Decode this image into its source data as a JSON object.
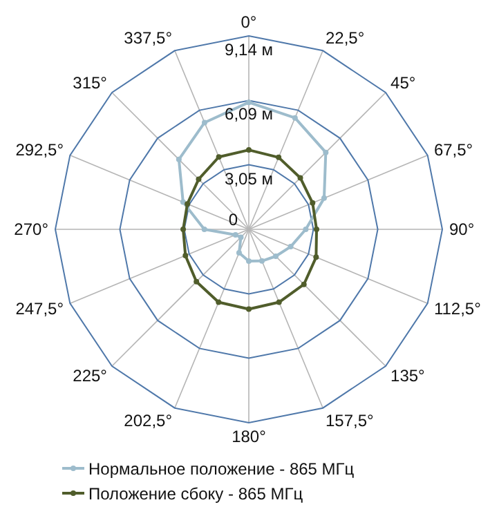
{
  "chart_data": {
    "type": "radar",
    "categories": [
      "0°",
      "22,5°",
      "45°",
      "67,5°",
      "90°",
      "112,5°",
      "135°",
      "157,5°",
      "180°",
      "202,5°",
      "225°",
      "247,5°",
      "270°",
      "292,5°",
      "315°",
      "337,5°"
    ],
    "ylim": [
      0,
      9.14
    ],
    "yticks": [
      {
        "value": 0,
        "label": "0"
      },
      {
        "value": 3.05,
        "label": "3,05 м"
      },
      {
        "value": 6.09,
        "label": "6,09 м"
      },
      {
        "value": 9.14,
        "label": "9,14 м"
      }
    ],
    "grid": true,
    "legend": "bottom",
    "marker": "circle",
    "series": [
      {
        "name": "Нормальное положение - 865 МГц",
        "color": "#9dbccc",
        "values": [
          6.0,
          5.7,
          5.14,
          3.85,
          2.69,
          2.14,
          1.8,
          1.62,
          1.5,
          1.2,
          0.53,
          0.68,
          2.1,
          3.36,
          4.67,
          5.46
        ]
      },
      {
        "name": "Положение сбоку - 865 МГц",
        "color": "#505d2b",
        "values": [
          3.75,
          3.68,
          3.44,
          3.26,
          3.2,
          3.44,
          3.68,
          3.73,
          3.77,
          3.73,
          3.5,
          3.24,
          3.1,
          3.14,
          3.35,
          3.7
        ]
      }
    ]
  }
}
